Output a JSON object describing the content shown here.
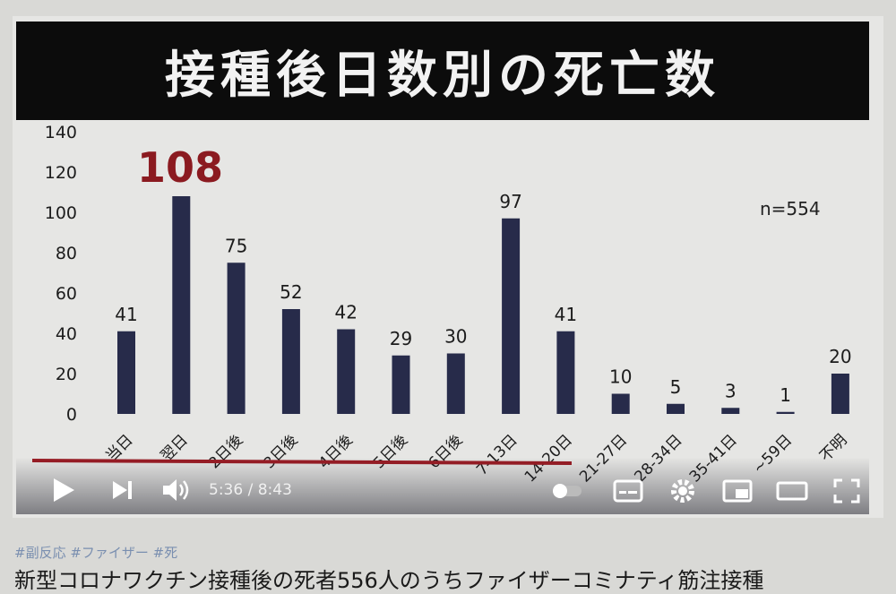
{
  "title": "接種後日数別の死亡数",
  "sample_note": "n=554",
  "highlight_value": "108",
  "player": {
    "time_display": "5:36 / 8:43"
  },
  "tags": "#副反応 #ファイザー #死",
  "caption": "新型コロナワクチン接種後の死者556人のうちファイザーコミナティ筋注接種",
  "colors": {
    "bar": "#272b4a",
    "highlight": "#8b1a20",
    "title_bg": "#0c0c0c",
    "underline": "#9a1c24"
  },
  "chart_data": {
    "type": "bar",
    "title": "接種後日数別の死亡数",
    "categories": [
      "当日",
      "翌日",
      "2日後",
      "3日後",
      "4日後",
      "5日後",
      "6日後",
      "7-13日",
      "14-20日",
      "21-27日",
      "28-34日",
      "35-41日",
      "~59日",
      "不明"
    ],
    "values": [
      41,
      108,
      75,
      52,
      42,
      29,
      30,
      97,
      41,
      10,
      5,
      3,
      1,
      20
    ],
    "value_labels": [
      "41",
      "",
      "75",
      "52",
      "42",
      "29",
      "30",
      "97",
      "41",
      "10",
      "5",
      "3",
      "1",
      "20"
    ],
    "yticks": [
      0,
      20,
      40,
      60,
      80,
      100,
      120,
      140
    ],
    "ylim": [
      0,
      140
    ],
    "grid": false,
    "legend": "none"
  }
}
